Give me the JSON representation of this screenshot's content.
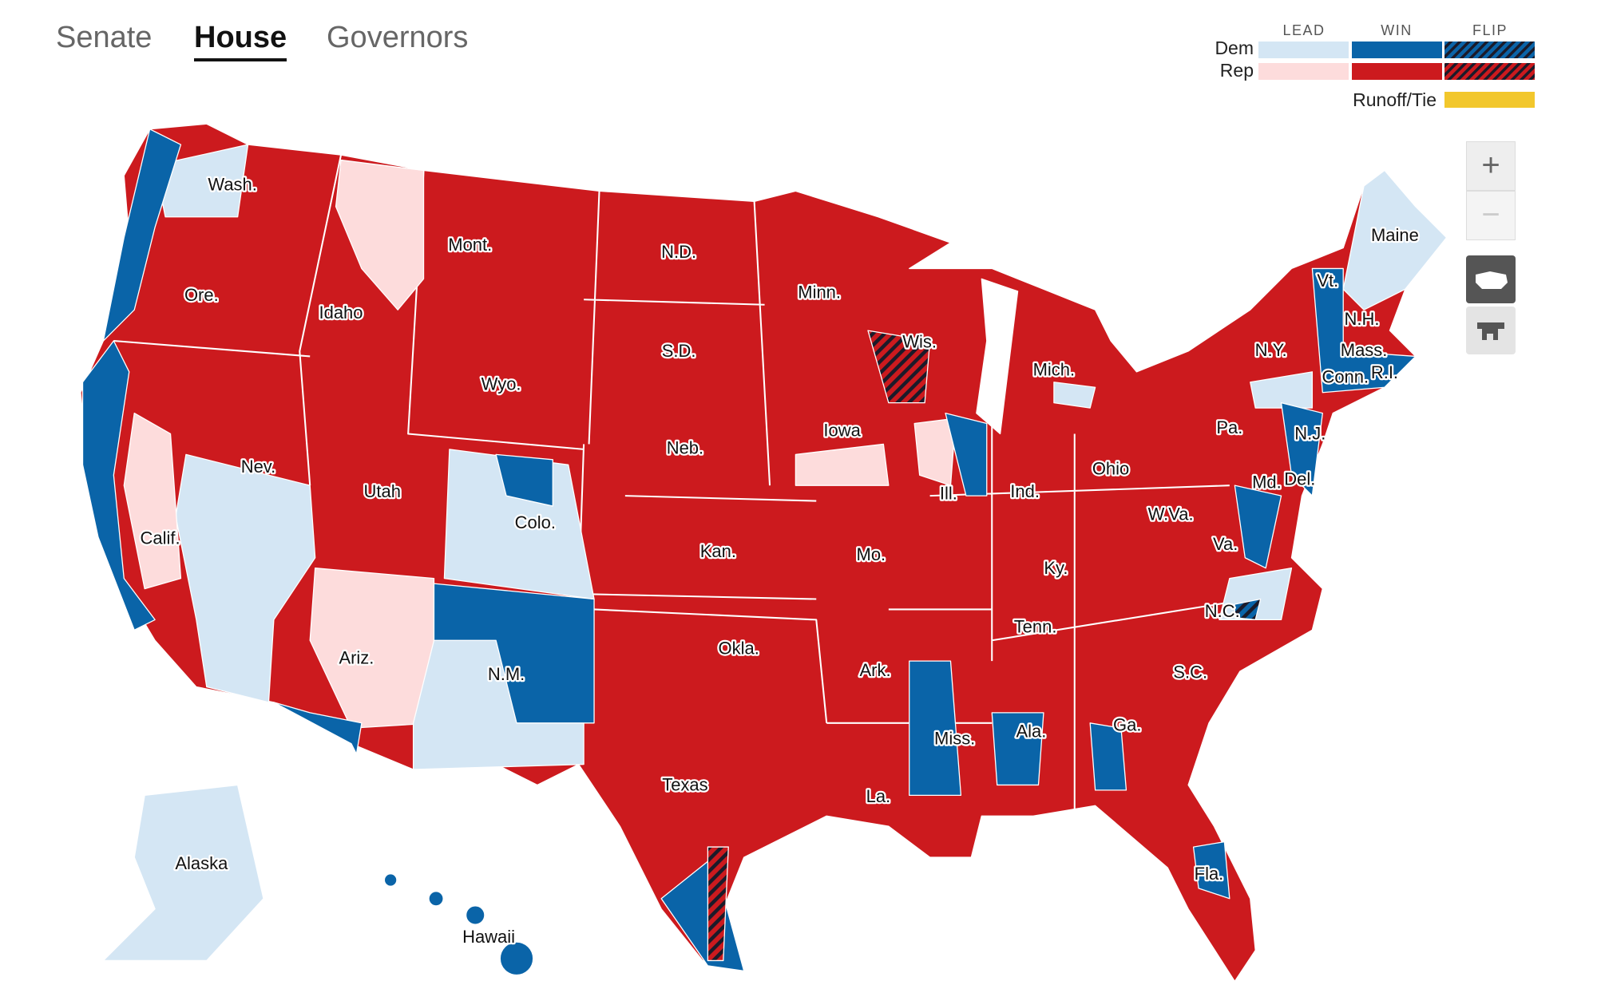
{
  "tabs": [
    {
      "label": "Senate",
      "selected": false
    },
    {
      "label": "House",
      "selected": true
    },
    {
      "label": "Governors",
      "selected": false
    }
  ],
  "legend": {
    "columns": [
      "LEAD",
      "WIN",
      "FLIP"
    ],
    "rows": [
      {
        "label": "Dem",
        "colors": [
          "#d4e6f4",
          "#0a64a8",
          "#0a64a8"
        ]
      },
      {
        "label": "Rep",
        "colors": [
          "#fddcdc",
          "#cc1a1e",
          "#cc1a1e"
        ]
      }
    ],
    "runoff": {
      "label": "Runoff/Tie",
      "color": "#f2c72c"
    }
  },
  "zoom_controls": [
    "+",
    "−"
  ],
  "map": {
    "labels": [
      "Wash.",
      "Ore.",
      "Calif.",
      "Nev.",
      "Idaho",
      "Mont.",
      "Wyo.",
      "Utah",
      "Colo.",
      "Ariz.",
      "N.M.",
      "N.D.",
      "S.D.",
      "Neb.",
      "Kan.",
      "Okla.",
      "Texas",
      "Minn.",
      "Iowa",
      "Mo.",
      "Ark.",
      "La.",
      "Wis.",
      "Ill.",
      "Mich.",
      "Ind.",
      "Ohio",
      "Ky.",
      "Tenn.",
      "Miss.",
      "Ala.",
      "Ga.",
      "Fla.",
      "S.C.",
      "N.C.",
      "Va.",
      "W.Va.",
      "Pa.",
      "N.Y.",
      "Vt.",
      "N.H.",
      "Maine",
      "Mass.",
      "Conn.",
      "R.I.",
      "N.J.",
      "Del.",
      "Md.",
      "Alaska",
      "Hawaii"
    ]
  }
}
